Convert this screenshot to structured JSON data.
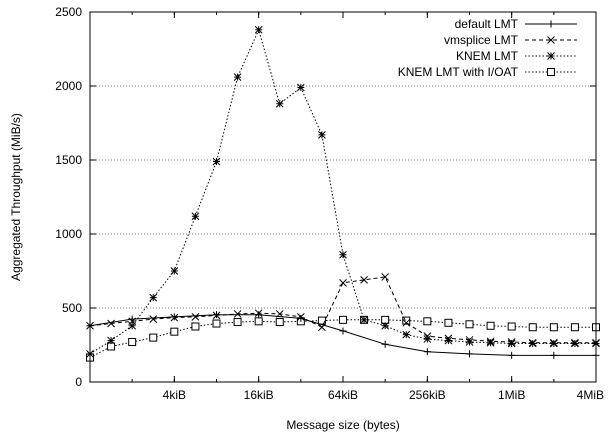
{
  "chart_data": {
    "type": "line",
    "xlabel": "Message size (bytes)",
    "ylabel": "Aggregated Throughput (MiB/s)",
    "x_scale": "log2",
    "x_unit": "bytes",
    "xlim": [
      1024,
      4194304
    ],
    "ylim": [
      0,
      2500
    ],
    "y_ticks": [
      0,
      500,
      1000,
      1500,
      2000,
      2500
    ],
    "x_ticks": [
      {
        "value": 4096,
        "label": "4kiB"
      },
      {
        "value": 16384,
        "label": "16kiB"
      },
      {
        "value": 65536,
        "label": "64kiB"
      },
      {
        "value": 262144,
        "label": "256kiB"
      },
      {
        "value": 1048576,
        "label": "1MiB"
      },
      {
        "value": 4194304,
        "label": "4MiB"
      }
    ],
    "grid": {
      "horizontal": true,
      "vertical": false
    },
    "legend_position": "top-right",
    "series": [
      {
        "name": "default LMT",
        "marker": "plus",
        "dash": "solid",
        "x": [
          1024,
          2048,
          4096,
          8192,
          16384,
          32768,
          65536,
          131072,
          262144,
          524288,
          1048576,
          2097152,
          4194304
        ],
        "values": [
          380,
          425,
          440,
          455,
          455,
          430,
          345,
          255,
          205,
          190,
          180,
          180,
          180
        ]
      },
      {
        "name": "vmsplice LMT",
        "marker": "x",
        "dash": "dashed",
        "x": [
          1024,
          1448,
          2048,
          2896,
          4096,
          5793,
          8192,
          11585,
          16384,
          23170,
          32768,
          46341,
          65536,
          92682,
          131072,
          185364,
          262144,
          370728,
          524288,
          741455,
          1048576,
          1482910,
          2097152,
          2965821,
          4194304
        ],
        "values": [
          380,
          395,
          410,
          425,
          435,
          440,
          450,
          460,
          465,
          460,
          440,
          370,
          670,
          690,
          710,
          400,
          310,
          295,
          285,
          275,
          270,
          265,
          265,
          265,
          265
        ]
      },
      {
        "name": "KNEM LMT",
        "marker": "star",
        "dash": "dotted",
        "x": [
          1024,
          1448,
          2048,
          2896,
          4096,
          5793,
          8192,
          11585,
          16384,
          23170,
          32768,
          46341,
          65536,
          92682,
          131072,
          185364,
          262144,
          370728,
          524288,
          741455,
          1048576,
          1482910,
          2097152,
          2965821,
          4194304
        ],
        "values": [
          190,
          280,
          380,
          570,
          750,
          1120,
          1490,
          2060,
          2380,
          1880,
          1990,
          1670,
          860,
          420,
          380,
          320,
          290,
          280,
          270,
          265,
          260,
          260,
          260,
          260,
          260
        ]
      },
      {
        "name": "KNEM LMT with I/OAT",
        "marker": "square",
        "dash": "dotted",
        "x": [
          1024,
          1448,
          2048,
          2896,
          4096,
          5793,
          8192,
          11585,
          16384,
          23170,
          32768,
          46341,
          65536,
          92682,
          131072,
          185364,
          262144,
          370728,
          524288,
          741455,
          1048576,
          1482910,
          2097152,
          2965821,
          4194304
        ],
        "values": [
          165,
          240,
          270,
          300,
          340,
          375,
          395,
          405,
          410,
          405,
          410,
          415,
          420,
          420,
          420,
          415,
          410,
          400,
          390,
          380,
          375,
          370,
          370,
          370,
          370
        ]
      }
    ]
  }
}
